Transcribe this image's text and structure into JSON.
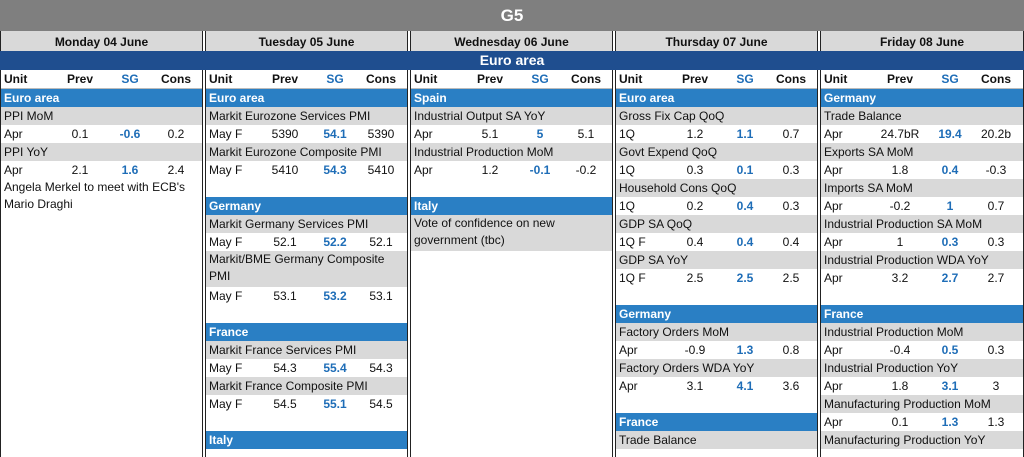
{
  "title": "G5",
  "region_banner": "Euro area",
  "headers": {
    "unit": "Unit",
    "prev": "Prev",
    "sg": "SG",
    "cons": "Cons"
  },
  "days": [
    {
      "name": "Monday 04 June",
      "items": [
        {
          "type": "section",
          "label": "Euro area"
        },
        {
          "type": "indicator",
          "label": "PPI MoM"
        },
        {
          "type": "row",
          "unit": "Apr",
          "prev": "0.1",
          "sg": "-0.6",
          "cons": "0.2"
        },
        {
          "type": "indicator",
          "label": "PPI YoY"
        },
        {
          "type": "row",
          "unit": "Apr",
          "prev": "2.1",
          "sg": "1.6",
          "cons": "2.4"
        },
        {
          "type": "note",
          "label": "Angela Merkel to meet with ECB's Mario Draghi"
        }
      ]
    },
    {
      "name": "Tuesday 05 June",
      "items": [
        {
          "type": "section",
          "label": "Euro area"
        },
        {
          "type": "indicator",
          "label": "Markit Eurozone Services PMI"
        },
        {
          "type": "row",
          "unit": "May F",
          "prev": "5390",
          "sg": "54.1",
          "cons": "5390"
        },
        {
          "type": "indicator",
          "label": "Markit Eurozone Composite PMI"
        },
        {
          "type": "row",
          "unit": "May F",
          "prev": "5410",
          "sg": "54.3",
          "cons": "5410"
        },
        {
          "type": "gap"
        },
        {
          "type": "section",
          "label": "Germany"
        },
        {
          "type": "indicator",
          "label": "Markit Germany Services PMI"
        },
        {
          "type": "row",
          "unit": "May F",
          "prev": "52.1",
          "sg": "52.2",
          "cons": "52.1"
        },
        {
          "type": "indicator",
          "label": "Markit/BME Germany Composite PMI",
          "tall": true
        },
        {
          "type": "row",
          "unit": "May F",
          "prev": "53.1",
          "sg": "53.2",
          "cons": "53.1"
        },
        {
          "type": "gap"
        },
        {
          "type": "section",
          "label": "France"
        },
        {
          "type": "indicator",
          "label": "Markit France Services PMI"
        },
        {
          "type": "row",
          "unit": "May F",
          "prev": "54.3",
          "sg": "55.4",
          "cons": "54.3"
        },
        {
          "type": "indicator",
          "label": "Markit France Composite PMI"
        },
        {
          "type": "row",
          "unit": "May F",
          "prev": "54.5",
          "sg": "55.1",
          "cons": "54.5"
        },
        {
          "type": "gap"
        },
        {
          "type": "section",
          "label": "Italy"
        }
      ]
    },
    {
      "name": "Wednesday 06 June",
      "items": [
        {
          "type": "section",
          "label": "Spain"
        },
        {
          "type": "indicator",
          "label": "Industrial Output SA YoY"
        },
        {
          "type": "row",
          "unit": "Apr",
          "prev": "5.1",
          "sg": "5",
          "cons": "5.1"
        },
        {
          "type": "indicator",
          "label": "Industrial Production MoM"
        },
        {
          "type": "row",
          "unit": "Apr",
          "prev": "1.2",
          "sg": "-0.1",
          "cons": "-0.2"
        },
        {
          "type": "gap"
        },
        {
          "type": "section",
          "label": "Italy"
        },
        {
          "type": "indicator",
          "label": "Vote of confidence on new government (tbc)",
          "tall": true
        }
      ]
    },
    {
      "name": "Thursday 07 June",
      "items": [
        {
          "type": "section",
          "label": "Euro area"
        },
        {
          "type": "indicator",
          "label": "Gross Fix Cap QoQ"
        },
        {
          "type": "row",
          "unit": "1Q",
          "prev": "1.2",
          "sg": "1.1",
          "cons": "0.7"
        },
        {
          "type": "indicator",
          "label": "Govt Expend QoQ"
        },
        {
          "type": "row",
          "unit": "1Q",
          "prev": "0.3",
          "sg": "0.1",
          "cons": "0.3"
        },
        {
          "type": "indicator",
          "label": "Household Cons QoQ"
        },
        {
          "type": "row",
          "unit": "1Q",
          "prev": "0.2",
          "sg": "0.4",
          "cons": "0.3"
        },
        {
          "type": "indicator",
          "label": "GDP SA QoQ"
        },
        {
          "type": "row",
          "unit": "1Q F",
          "prev": "0.4",
          "sg": "0.4",
          "cons": "0.4"
        },
        {
          "type": "indicator",
          "label": "GDP SA YoY"
        },
        {
          "type": "row",
          "unit": "1Q F",
          "prev": "2.5",
          "sg": "2.5",
          "cons": "2.5"
        },
        {
          "type": "gap"
        },
        {
          "type": "section",
          "label": "Germany"
        },
        {
          "type": "indicator",
          "label": "Factory Orders MoM"
        },
        {
          "type": "row",
          "unit": "Apr",
          "prev": "-0.9",
          "sg": "1.3",
          "cons": "0.8"
        },
        {
          "type": "indicator",
          "label": "Factory Orders WDA YoY"
        },
        {
          "type": "row",
          "unit": "Apr",
          "prev": "3.1",
          "sg": "4.1",
          "cons": "3.6"
        },
        {
          "type": "gap"
        },
        {
          "type": "section",
          "label": "France"
        },
        {
          "type": "indicator",
          "label": "Trade Balance"
        }
      ]
    },
    {
      "name": "Friday 08 June",
      "items": [
        {
          "type": "section",
          "label": "Germany"
        },
        {
          "type": "indicator",
          "label": "Trade Balance"
        },
        {
          "type": "row",
          "unit": "Apr",
          "prev": "24.7bR",
          "sg": "19.4",
          "cons": "20.2b"
        },
        {
          "type": "indicator",
          "label": "Exports SA MoM"
        },
        {
          "type": "row",
          "unit": "Apr",
          "prev": "1.8",
          "sg": "0.4",
          "cons": "-0.3"
        },
        {
          "type": "indicator",
          "label": "Imports SA MoM"
        },
        {
          "type": "row",
          "unit": "Apr",
          "prev": "-0.2",
          "sg": "1",
          "cons": "0.7"
        },
        {
          "type": "indicator",
          "label": "Industrial Production SA MoM"
        },
        {
          "type": "row",
          "unit": "Apr",
          "prev": "1",
          "sg": "0.3",
          "cons": "0.3"
        },
        {
          "type": "indicator",
          "label": "Industrial Production WDA YoY"
        },
        {
          "type": "row",
          "unit": "Apr",
          "prev": "3.2",
          "sg": "2.7",
          "cons": "2.7"
        },
        {
          "type": "gap"
        },
        {
          "type": "section",
          "label": "France"
        },
        {
          "type": "indicator",
          "label": "Industrial Production MoM"
        },
        {
          "type": "row",
          "unit": "Apr",
          "prev": "-0.4",
          "sg": "0.5",
          "cons": "0.3"
        },
        {
          "type": "indicator",
          "label": "Industrial Production YoY"
        },
        {
          "type": "row",
          "unit": "Apr",
          "prev": "1.8",
          "sg": "3.1",
          "cons": "3"
        },
        {
          "type": "indicator",
          "label": "Manufacturing Production MoM"
        },
        {
          "type": "row",
          "unit": "Apr",
          "prev": "0.1",
          "sg": "1.3",
          "cons": "1.3"
        },
        {
          "type": "indicator",
          "label": "Manufacturing Production YoY"
        }
      ]
    }
  ]
}
